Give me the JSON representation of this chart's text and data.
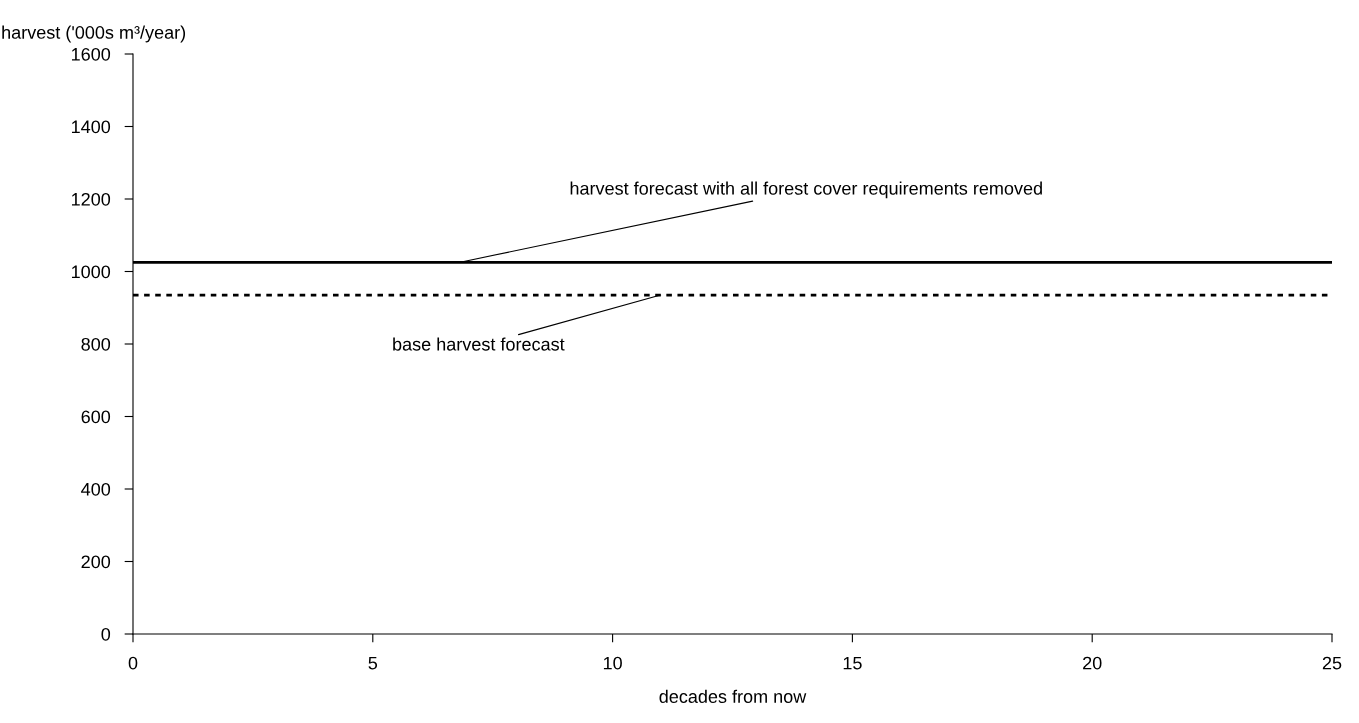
{
  "chart_data": {
    "type": "line",
    "xlabel": "decades from now",
    "ylabel": "harvest ('000s m³/year)",
    "xlim": [
      0,
      25
    ],
    "xticks": [
      0,
      5,
      10,
      15,
      20,
      25
    ],
    "ylim": [
      0,
      1600
    ],
    "yticks": [
      0,
      200,
      400,
      600,
      800,
      1000,
      1200,
      1400,
      1600
    ],
    "grid": false,
    "legend": false,
    "ref_lines": [
      {
        "axis": "y",
        "value": 1025,
        "color": "#000000",
        "line_style": "solid"
      },
      {
        "axis": "y",
        "value": 935,
        "color": "#000000",
        "line_style": "dotted"
      }
    ],
    "annotations": [
      {
        "text": "harvest forecast with all forest cover requirements removed",
        "x": 6.8,
        "y": 1025
      },
      {
        "text": "base harvest forecast",
        "x": 11.0,
        "y": 935
      }
    ]
  }
}
